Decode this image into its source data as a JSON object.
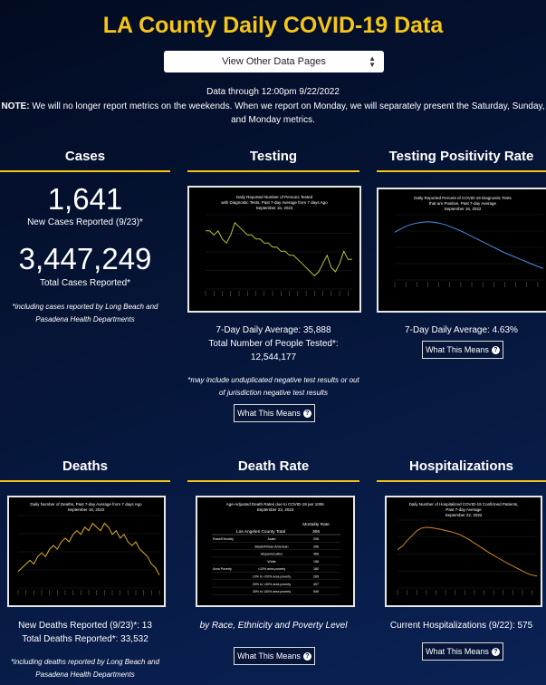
{
  "page": {
    "title": "LA County Daily COVID-19 Data",
    "selector": "View Other Data Pages",
    "data_through": "Data through 12:00pm 9/22/2022",
    "note_label": "NOTE:",
    "note_text": " We will no longer report metrics on the weekends. When we report on Monday, we will separately present the Saturday, Sunday, and Monday metrics."
  },
  "cases": {
    "title": "Cases",
    "new_value": "1,641",
    "new_label": "New Cases Reported (9/23)*",
    "total_value": "3,447,249",
    "total_label": "Total Cases Reported*",
    "footnote": "*including cases reported by Long Beach and Pasadena Health Departments"
  },
  "testing": {
    "title": "Testing",
    "chart_title_1": "Daily Reported Number of Persons Tested",
    "chart_title_2": "with Diagnostic Tests, Past 7-day Average from 7 days Ago",
    "chart_date": "September 16, 2022",
    "avg": "7-Day Daily Average: 35,888",
    "total_label": "Total Number of People Tested*:",
    "total_value": "12,544,177",
    "footnote": "*may include unduplicated negative test results or out of jurisdiction negative test results",
    "button": "What This Means"
  },
  "positivity": {
    "title": "Testing Positivity Rate",
    "chart_title_1": "Daily Reported Percent of COVID-19 Diagnostic Tests",
    "chart_title_2": "that are Positive, Past 7-day Average",
    "chart_date": "September 16, 2022",
    "avg": "7-Day Daily Average: 4.63%",
    "button": "What This Means"
  },
  "deaths": {
    "title": "Deaths",
    "chart_title_1": "Daily Number of Deaths, Past 7-day Average from 7 days Ago",
    "chart_date": "September 16, 2022",
    "new_label": "New Deaths Reported (9/23)*: 13",
    "total_label": "Total Deaths Reported*: 33,532",
    "footnote": "*including deaths reported by Long Beach and Pasadena Health Departments"
  },
  "death_rate": {
    "title": "Death Rate",
    "chart_title_1": "Age-Adjusted Death Rates due to COVID-19 per 100K",
    "chart_date": "September 23, 2022",
    "col_header": "Mortality Rate",
    "total_row_label": "Los Angeles County Total",
    "total_row_value": "306",
    "rows": [
      {
        "group": "Race/Ethnicity",
        "label": "Asian",
        "value": "206"
      },
      {
        "group": "",
        "label": "Black/African American",
        "value": "396"
      },
      {
        "group": "",
        "label": "Hispanic/Latino",
        "value": "466"
      },
      {
        "group": "",
        "label": "White",
        "value": "198"
      },
      {
        "group": "Area Poverty",
        "label": "<10% area poverty",
        "value": "180"
      },
      {
        "group": "",
        "label": "10% to <20% area poverty",
        "value": "265"
      },
      {
        "group": "",
        "label": "20% to <30% area poverty",
        "value": "407"
      },
      {
        "group": "",
        "label": "30% to 100% area poverty",
        "value": "549"
      }
    ],
    "caption": "by Race, Ethnicity and Poverty Level",
    "button": "What This Means"
  },
  "hospitalizations": {
    "title": "Hospitalizations",
    "chart_title_1": "Daily Number of Hospitalized COVID-19 Confirmed Patients,",
    "chart_title_2": "Past 7-day Average",
    "chart_date": "September 22, 2022",
    "current": "Current Hospitalizations (9/22): 575",
    "button": "What This Means"
  },
  "colors": {
    "accent": "#f5c518",
    "testing_line": "#b8c832",
    "positivity_line": "#4a8fe0",
    "deaths_line": "#e0b020",
    "hosp_line": "#d08a20"
  },
  "chart_data": [
    {
      "type": "line",
      "title": "Daily Reported Number of Persons Tested with Diagnostic Tests, Past 7-day Average from 7 days Ago",
      "values": [
        46,
        46,
        45,
        46,
        44,
        43,
        45,
        48,
        47,
        46,
        45,
        45,
        44,
        44,
        43,
        43,
        42,
        42,
        41,
        41,
        40,
        40,
        39,
        38,
        37,
        36,
        35,
        36,
        38,
        40,
        37,
        36,
        38,
        41,
        39,
        39
      ]
    },
    {
      "type": "line",
      "title": "Daily Reported Percent of COVID-19 Diagnostic Tests that are Positive, Past 7-day Average",
      "values": [
        12.5,
        13.2,
        13.8,
        14.2,
        14.5,
        14.7,
        14.8,
        14.7,
        14.5,
        14.2,
        13.8,
        13.3,
        12.8,
        12.2,
        11.6,
        11.0,
        10.4,
        9.8,
        9.2,
        8.6,
        8.0,
        7.5,
        7.0,
        6.5,
        6.0,
        5.5,
        5.0,
        4.6
      ]
    },
    {
      "type": "line",
      "title": "Daily Number of Deaths, Past 7-day Average from 7 days Ago",
      "values": [
        4,
        5,
        6,
        7,
        6,
        8,
        9,
        8,
        10,
        11,
        10,
        12,
        13,
        12,
        14,
        15,
        14,
        16,
        15,
        17,
        16,
        15,
        17,
        16,
        14,
        15,
        13,
        14,
        12,
        11,
        12,
        10,
        9,
        8,
        6,
        5,
        3
      ]
    },
    {
      "type": "line",
      "title": "Daily Number of Hospitalized COVID-19 Confirmed Patients, Past 7-day Average",
      "values": [
        950,
        1000,
        1080,
        1150,
        1220,
        1260,
        1270,
        1265,
        1255,
        1240,
        1225,
        1210,
        1190,
        1165,
        1130,
        1090,
        1045,
        1000,
        955,
        910,
        870,
        830,
        790,
        750,
        715,
        680,
        645,
        610,
        585,
        575
      ]
    }
  ]
}
